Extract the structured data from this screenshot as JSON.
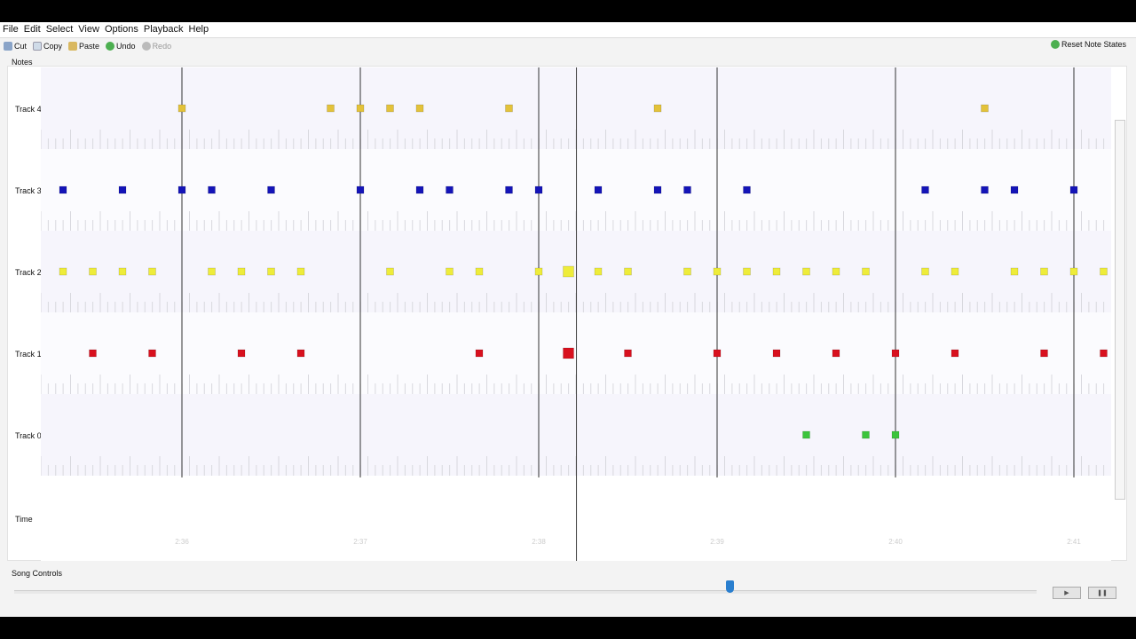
{
  "menu": [
    "File",
    "Edit",
    "Select",
    "View",
    "Options",
    "Playback",
    "Help"
  ],
  "toolbar": {
    "cut": "Cut",
    "copy": "Copy",
    "paste": "Paste",
    "undo": "Undo",
    "redo": "Redo",
    "reset": "Reset Note States"
  },
  "notes_label": "Notes",
  "time_label": "Time",
  "song_controls_label": "Song Controls",
  "time_ticks": [
    "2:36",
    "2:37",
    "2:38",
    "2:39",
    "2:40",
    "2:41"
  ],
  "measure_beats": [
    4,
    10,
    16,
    22,
    28,
    34
  ],
  "playhead_beat": 17.27,
  "active_beat": 17,
  "tracks": [
    {
      "name": "Track 4",
      "color": "#e3c23a",
      "beats": [
        4,
        9,
        10,
        11,
        12,
        15,
        20,
        31
      ]
    },
    {
      "name": "Track 3",
      "color": "#1414b8",
      "beats": [
        0,
        2,
        4,
        5,
        7,
        10,
        12,
        13,
        15,
        16,
        18,
        20,
        21,
        23,
        29,
        31,
        32,
        34
      ]
    },
    {
      "name": "Track 2",
      "color": "#eeec3a",
      "beats": [
        0,
        1,
        2,
        3,
        5,
        6,
        7,
        8,
        11,
        13,
        14,
        16,
        17,
        18,
        19,
        21,
        22,
        23,
        24,
        25,
        26,
        27,
        29,
        30,
        32,
        33,
        34,
        35
      ]
    },
    {
      "name": "Track 1",
      "color": "#d8101e",
      "beats": [
        1,
        3,
        6,
        8,
        14,
        17,
        19,
        22,
        24,
        26,
        28,
        30,
        33,
        35
      ]
    },
    {
      "name": "Track 0",
      "color": "#3cc43c",
      "beats": [
        25,
        27,
        28
      ]
    }
  ],
  "song_position_percent": 70,
  "play_icon": "play-icon",
  "pause_icon": "pause-icon"
}
